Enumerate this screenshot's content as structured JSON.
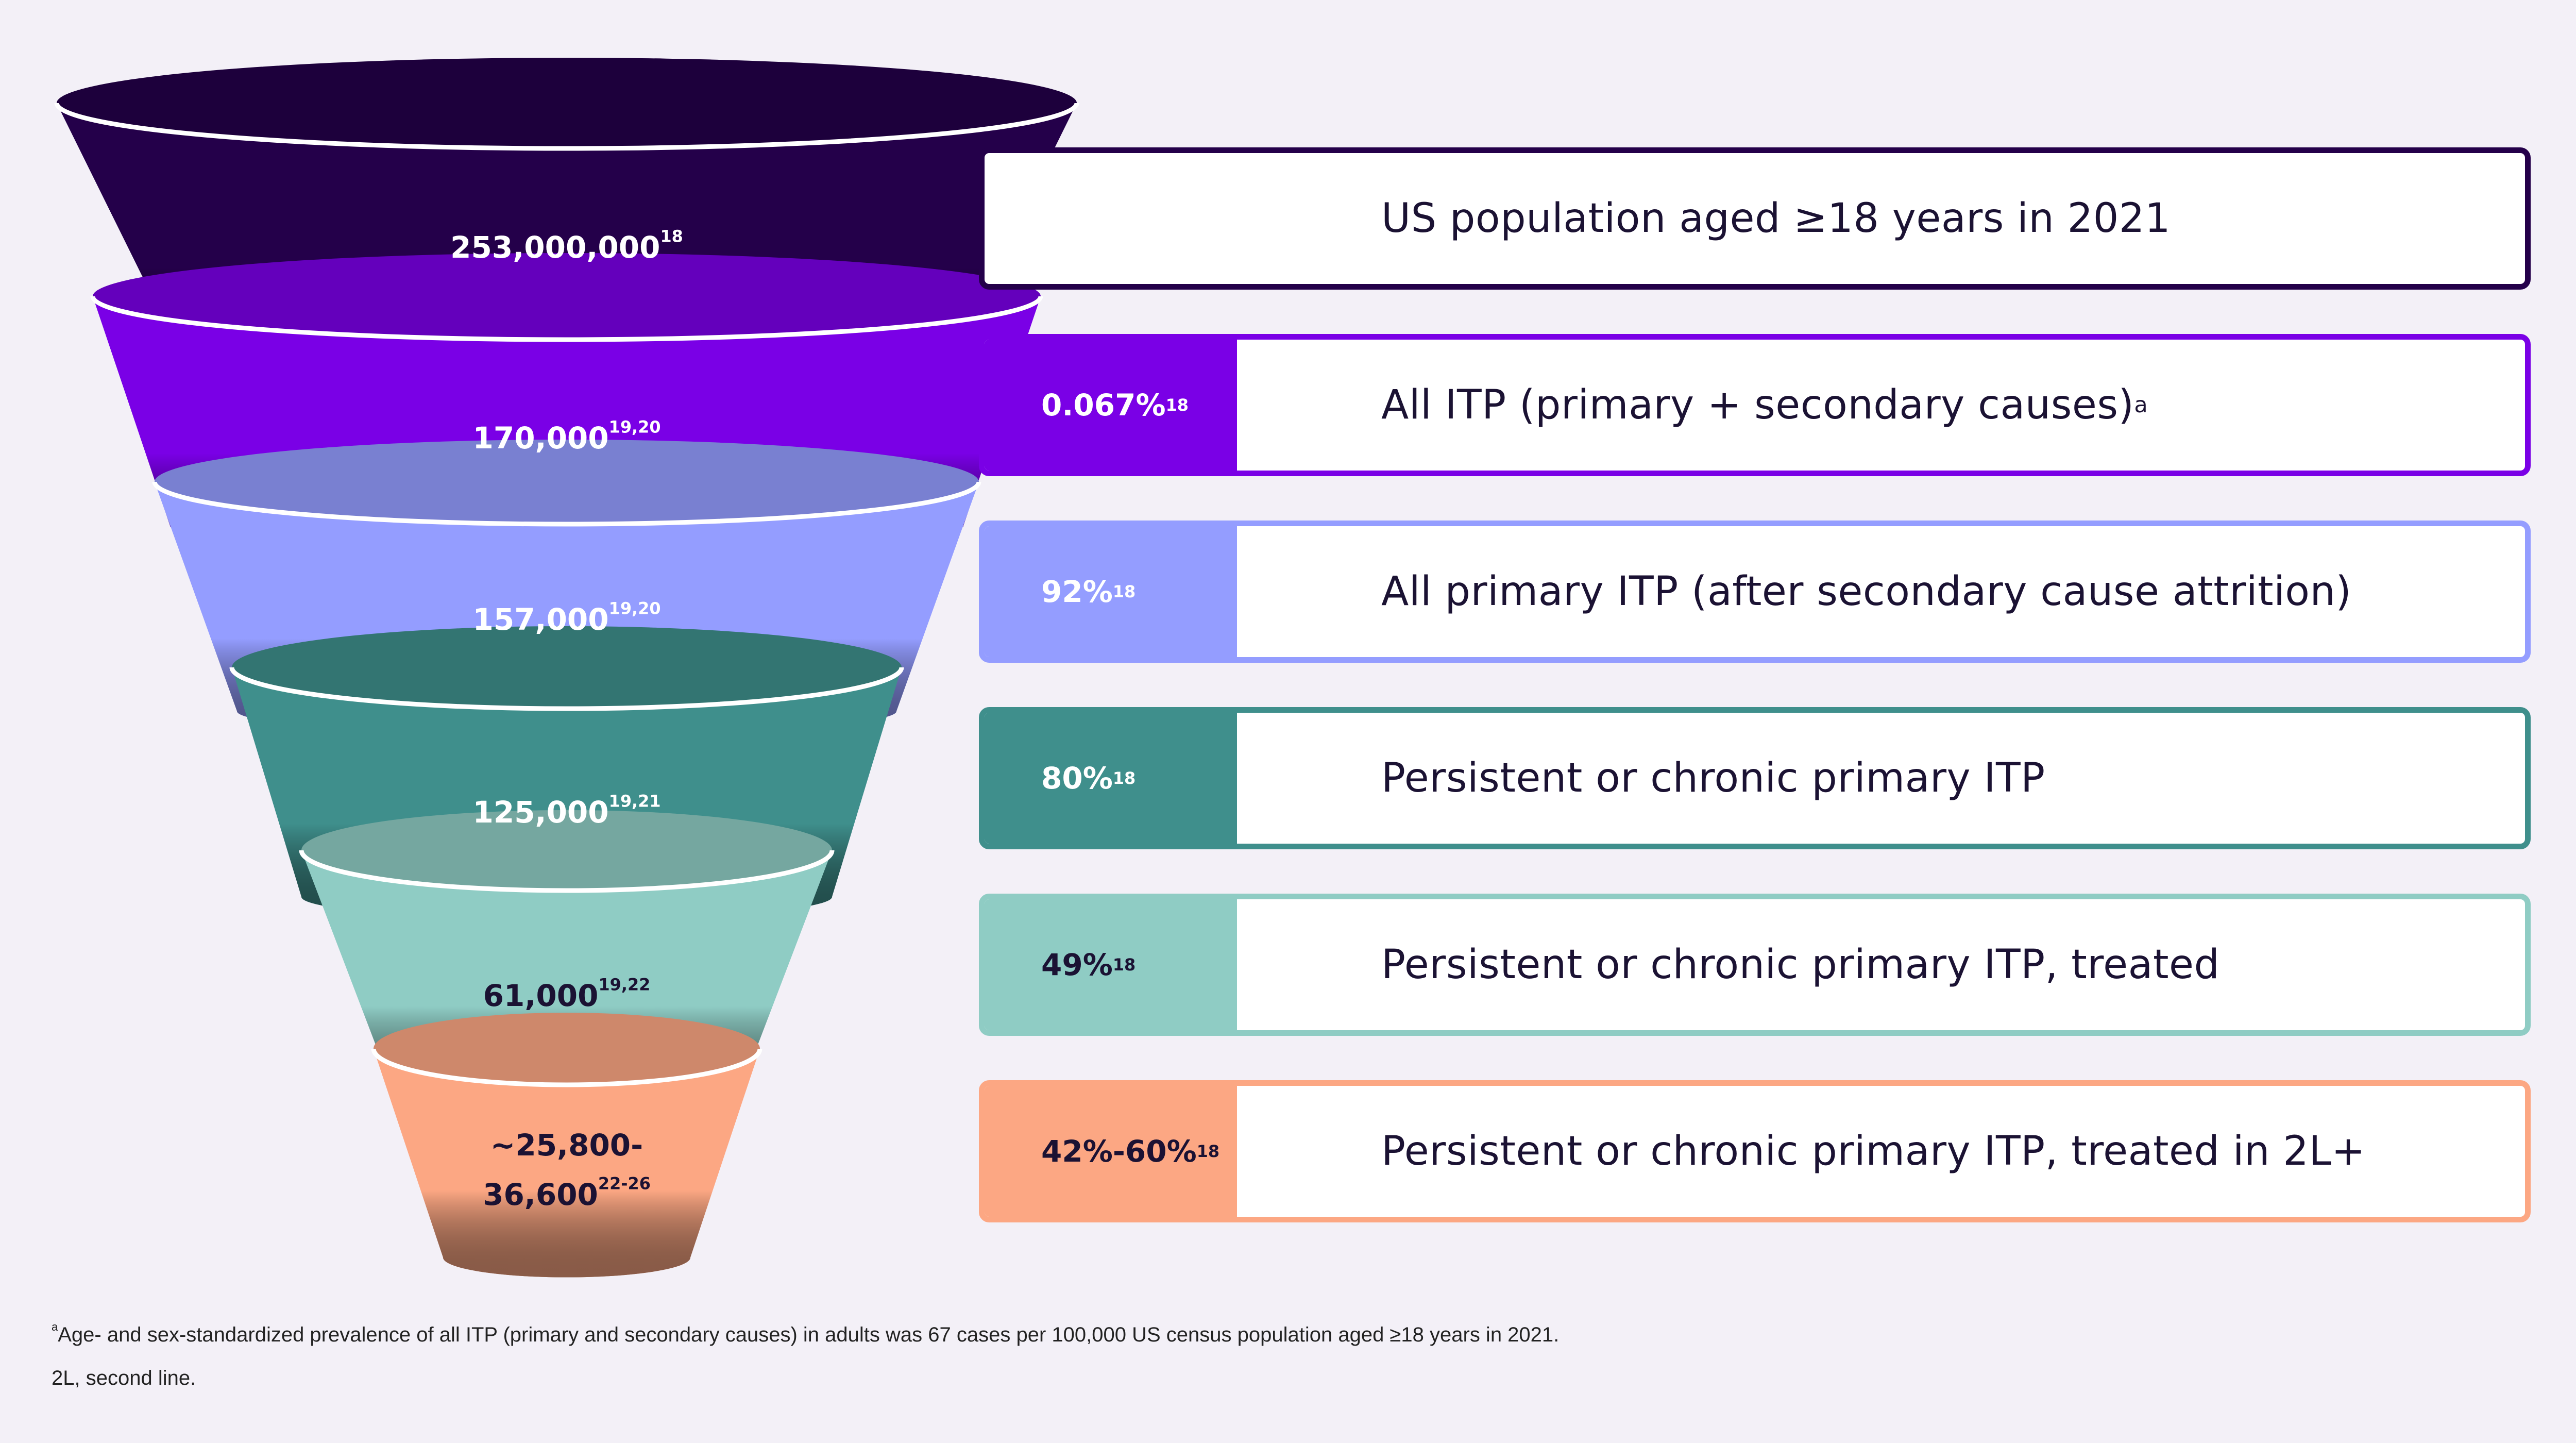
{
  "colors": {
    "background": "#f3f0f7",
    "stage1": "#24004a",
    "stage2": "#7a00e6",
    "stage3": "#949dff",
    "stage4": "#3f8f8c",
    "stage5": "#8fccc4",
    "stage6": "#fca783"
  },
  "stages": [
    {
      "count": "253,000,000",
      "count_ref": "18",
      "percent": "",
      "percent_ref": "",
      "label": "US population aged ≥18 years in 2021",
      "label_ref": ""
    },
    {
      "count": "170,000",
      "count_ref": "19,20",
      "percent": "0.067%",
      "percent_ref": "18",
      "label": "All ITP (primary + secondary causes)",
      "label_ref": "a"
    },
    {
      "count": "157,000",
      "count_ref": "19,20",
      "percent": "92%",
      "percent_ref": "18",
      "label": "All primary ITP (after secondary cause attrition)",
      "label_ref": ""
    },
    {
      "count": "125,000",
      "count_ref": "19,21",
      "percent": "80%",
      "percent_ref": "18",
      "label": "Persistent or chronic primary ITP",
      "label_ref": ""
    },
    {
      "count": "61,000",
      "count_ref": "19,22",
      "percent": "49%",
      "percent_ref": "18",
      "label": "Persistent or chronic primary ITP, treated",
      "label_ref": ""
    },
    {
      "count_line1": "~25,800-",
      "count_line2": "36,600",
      "count_ref": "22-26",
      "percent": "42%-60%",
      "percent_ref": "18",
      "label": "Persistent or chronic primary ITP, treated in 2L+",
      "label_ref": ""
    }
  ],
  "footnotes": {
    "a_marker": "a",
    "a_text": "Age- and sex-standardized prevalence of all ITP (primary and secondary causes) in adults was 67 cases per 100,000 US census population aged ≥18 years in 2021.",
    "abbrev": "2L, second line."
  }
}
